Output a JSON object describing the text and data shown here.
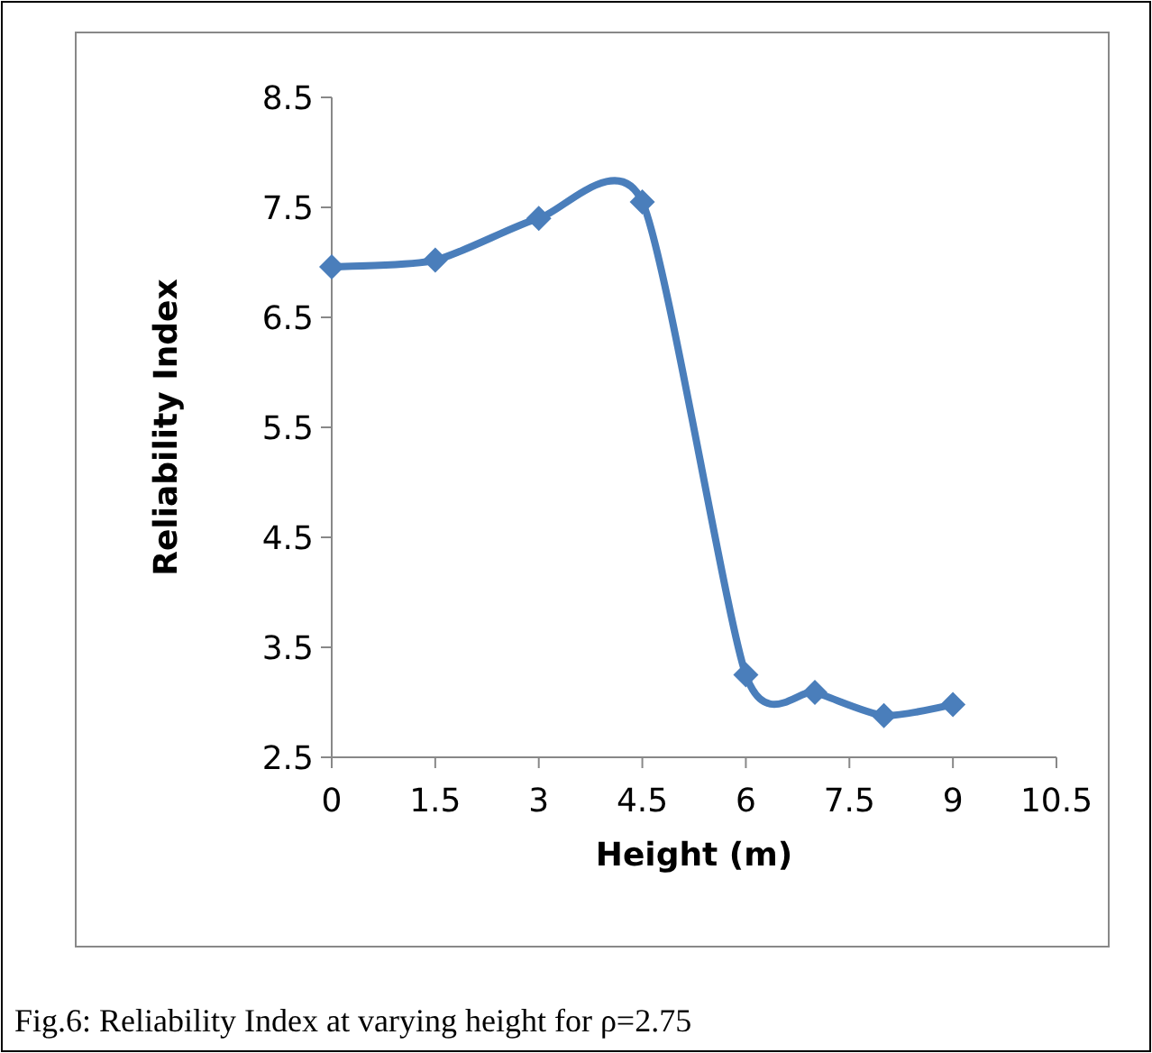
{
  "chart_data": {
    "type": "line",
    "xlabel": "Height (m)",
    "ylabel": "Reliability Index",
    "x": [
      0,
      1.5,
      3,
      4.5,
      6,
      7,
      8,
      9
    ],
    "series": [
      {
        "color": "#4a7ebb",
        "values": [
          6.96,
          7.02,
          7.4,
          7.55,
          3.25,
          3.09,
          2.88,
          2.98
        ]
      }
    ],
    "xlim": [
      0,
      10.5
    ],
    "xticks": [
      0,
      1.5,
      3,
      4.5,
      6,
      7.5,
      9,
      10.5
    ],
    "ylim": [
      2.5,
      8.5
    ],
    "yticks": [
      2.5,
      3.5,
      4.5,
      5.5,
      6.5,
      7.5,
      8.5
    ],
    "marker": "diamond",
    "line_style": "solid",
    "grid": false,
    "annotations": [
      "Fig.6: Reliability Index at varying height for ρ=2.75"
    ]
  }
}
